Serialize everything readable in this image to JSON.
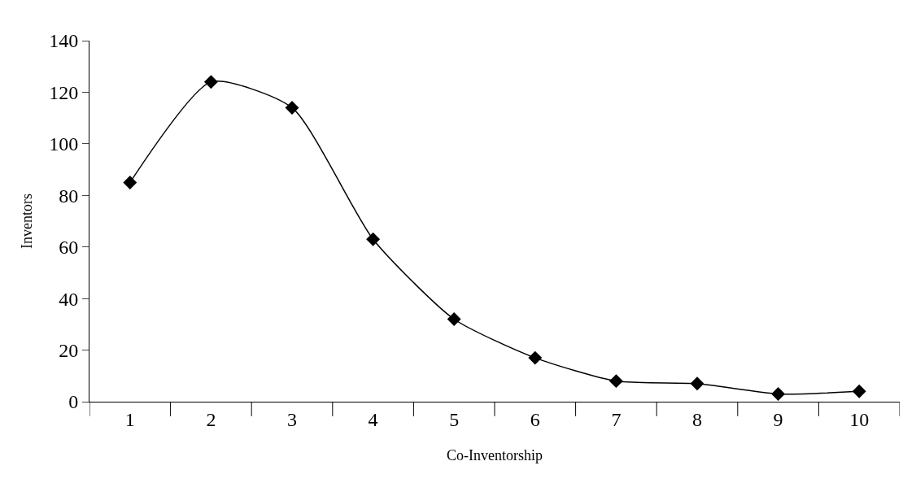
{
  "chart_data": {
    "type": "line",
    "xlabel": "Co-Inventorship",
    "ylabel": "Inventors",
    "categories": [
      "1",
      "2",
      "3",
      "4",
      "5",
      "6",
      "7",
      "8",
      "9",
      "10"
    ],
    "series": [
      {
        "color": "#000000",
        "values": [
          85,
          124,
          114,
          63,
          32,
          17,
          8,
          7,
          3,
          4
        ]
      }
    ],
    "ylim": [
      0,
      140
    ],
    "yticks": [
      0,
      20,
      40,
      60,
      80,
      100,
      120,
      140
    ],
    "legend": false,
    "marker": "diamond",
    "line_style": "solid"
  }
}
